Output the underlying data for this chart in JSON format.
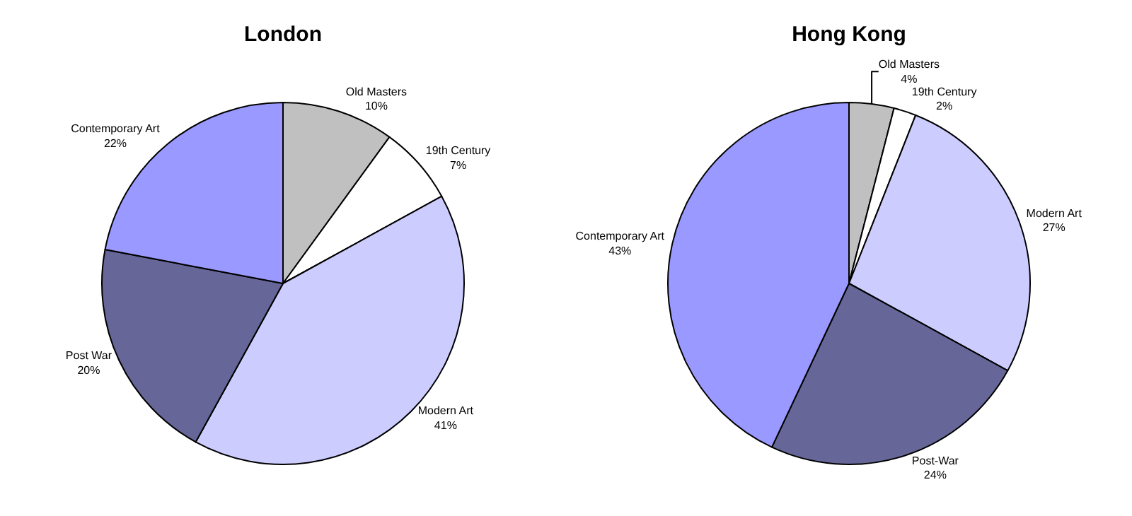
{
  "chart_data": [
    {
      "type": "pie",
      "title": "London",
      "categories": [
        "Old Masters",
        "19th Century",
        "Modern Art",
        "Post War",
        "Contemporary Art"
      ],
      "values": [
        10,
        7,
        41,
        20,
        22
      ],
      "value_labels": [
        "10%",
        "7%",
        "41%",
        "20%",
        "22%"
      ],
      "colors": [
        "#c0c0c0",
        "#ffffff",
        "#ccccff",
        "#666699",
        "#9999ff"
      ],
      "legend": false
    },
    {
      "type": "pie",
      "title": "Hong Kong",
      "categories": [
        "Old Masters",
        "19th Century",
        "Modern Art",
        "Post-War",
        "Contemporary Art"
      ],
      "values": [
        4,
        2,
        27,
        24,
        43
      ],
      "value_labels": [
        "4%",
        "2%",
        "27%",
        "24%",
        "43%"
      ],
      "colors": [
        "#c0c0c0",
        "#ffffff",
        "#ccccff",
        "#666699",
        "#9999ff"
      ],
      "legend": false
    }
  ]
}
